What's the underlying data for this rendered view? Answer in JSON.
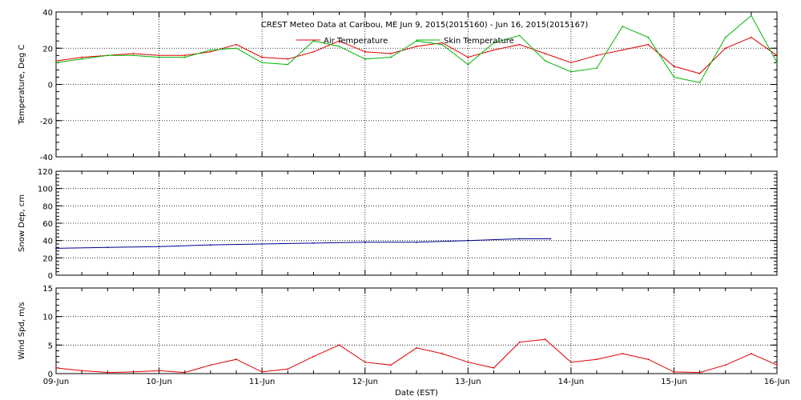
{
  "title": "CREST Meteo Data at Caribou, ME   Jun  9, 2015(2015160) - Jun 16, 2015(2015167)",
  "x_axis": {
    "label": "Date (EST)",
    "tick_labels": [
      "09-Jun",
      "10-Jun",
      "11-Jun",
      "12-Jun",
      "13-Jun",
      "14-Jun",
      "15-Jun",
      "16-Jun"
    ]
  },
  "colors": {
    "air": "#e00000",
    "skin": "#00b400",
    "snow": "#000090",
    "wind": "#e00000"
  },
  "chart_data": [
    {
      "type": "line",
      "ylabel": "Temperature, Deg C",
      "ylim": [
        -40,
        40
      ],
      "yticks": [
        -40,
        -20,
        0,
        20,
        40
      ],
      "xlim": [
        0,
        7
      ],
      "grid": true,
      "legend": "top-center",
      "series": [
        {
          "name": "Air Temperature",
          "color": "#e00000",
          "x": [
            0,
            0.25,
            0.5,
            0.75,
            1.0,
            1.25,
            1.5,
            1.75,
            2.0,
            2.25,
            2.5,
            2.75,
            3.0,
            3.25,
            3.5,
            3.75,
            4.0,
            4.25,
            4.5,
            4.75,
            5.0,
            5.25,
            5.5,
            5.75,
            6.0,
            6.25,
            6.5,
            6.75,
            7.0
          ],
          "y": [
            13,
            15,
            16,
            17,
            16,
            16,
            18,
            22,
            15,
            14,
            18,
            24,
            18,
            17,
            21,
            23,
            15,
            19,
            22,
            17,
            12,
            16,
            19,
            22,
            10,
            6,
            20,
            26,
            16
          ]
        },
        {
          "name": "Skin Temperature",
          "color": "#00b400",
          "x": [
            0,
            0.25,
            0.5,
            0.75,
            1.0,
            1.25,
            1.5,
            1.75,
            2.0,
            2.25,
            2.5,
            2.75,
            3.0,
            3.25,
            3.5,
            3.75,
            4.0,
            4.25,
            4.5,
            4.75,
            5.0,
            5.25,
            5.5,
            5.75,
            6.0,
            6.25,
            6.5,
            6.75,
            7.0
          ],
          "y": [
            12,
            14,
            16,
            16,
            15,
            15,
            19,
            20,
            12,
            11,
            24,
            21,
            14,
            15,
            24,
            22,
            11,
            23,
            27,
            13,
            7,
            9,
            32,
            26,
            4,
            1,
            26,
            38,
            12
          ]
        }
      ]
    },
    {
      "type": "line",
      "ylabel": "Snow Dep, cm",
      "ylim": [
        0,
        120
      ],
      "yticks": [
        0,
        20,
        40,
        60,
        80,
        100,
        120
      ],
      "xlim": [
        0,
        7
      ],
      "grid": true,
      "series": [
        {
          "color": "#000090",
          "x": [
            0,
            0.5,
            1.0,
            1.5,
            2.0,
            2.5,
            3.0,
            3.5,
            4.0,
            4.5,
            4.8
          ],
          "y": [
            31,
            32,
            33,
            35,
            36,
            37,
            38,
            38,
            40,
            42,
            42
          ]
        }
      ]
    },
    {
      "type": "line",
      "ylabel": "Wind Spd, m/s",
      "ylim": [
        0,
        15
      ],
      "yticks": [
        0,
        5,
        10,
        15
      ],
      "xlim": [
        0,
        7
      ],
      "grid": true,
      "series": [
        {
          "color": "#e00000",
          "x": [
            0,
            0.25,
            0.5,
            0.75,
            1.0,
            1.25,
            1.5,
            1.75,
            2.0,
            2.25,
            2.5,
            2.75,
            3.0,
            3.25,
            3.5,
            3.75,
            4.0,
            4.25,
            4.5,
            4.75,
            5.0,
            5.25,
            5.5,
            5.75,
            6.0,
            6.25,
            6.5,
            6.75,
            7.0
          ],
          "y": [
            1,
            0.5,
            0.2,
            0.3,
            0.5,
            0.2,
            1.5,
            2.5,
            0.3,
            0.8,
            3,
            5,
            2,
            1.5,
            4.5,
            3.5,
            2,
            1,
            5.5,
            6,
            2,
            2.5,
            3.5,
            2.5,
            0.3,
            0.2,
            1.5,
            3.5,
            1.5
          ]
        }
      ]
    }
  ]
}
